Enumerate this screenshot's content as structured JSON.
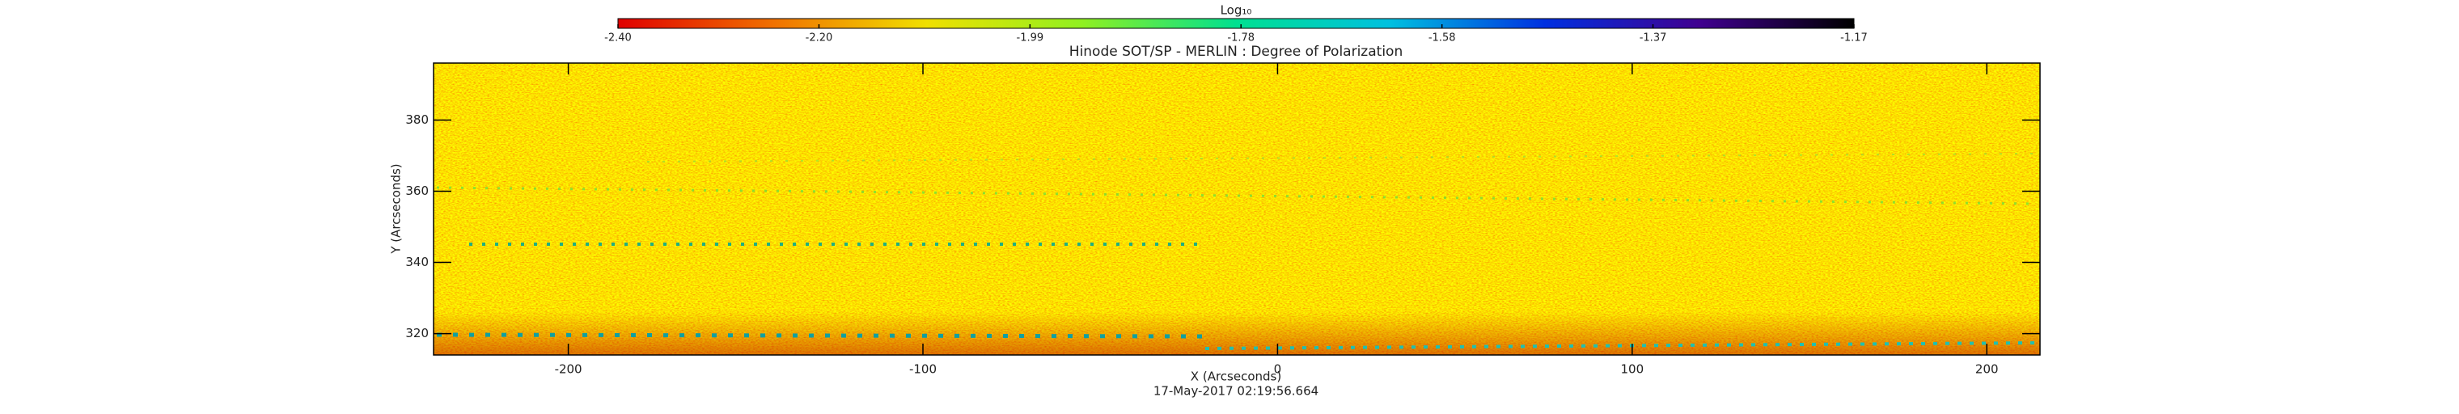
{
  "chart_data": {
    "type": "heatmap",
    "title": "Hinode SOT/SP - MERLIN : Degree of Polarization",
    "xlabel": "X (Arcseconds)",
    "ylabel": "Y (Arcseconds)",
    "footer": "17-May-2017 02:19:56.664",
    "xlim": [
      -238,
      215
    ],
    "ylim": [
      314,
      396
    ],
    "xticks": [
      -200,
      -100,
      0,
      100,
      200
    ],
    "yticks": [
      320,
      340,
      360,
      380
    ],
    "colorbar": {
      "label": "Log₁₀",
      "lim": [
        -2.4,
        -1.17
      ],
      "ticks": [
        {
          "value": -2.4,
          "label": "-2.40"
        },
        {
          "value": -2.2,
          "label": "-2.20"
        },
        -1.99,
        -1.78,
        -1.58,
        -1.37,
        -1.17
      ],
      "colormap": [
        "#e00000",
        "#f07000",
        "#f0e000",
        "#90f020",
        "#00e090",
        "#00c0e0",
        "#0030e0",
        "#400090",
        "#000000"
      ]
    }
  }
}
